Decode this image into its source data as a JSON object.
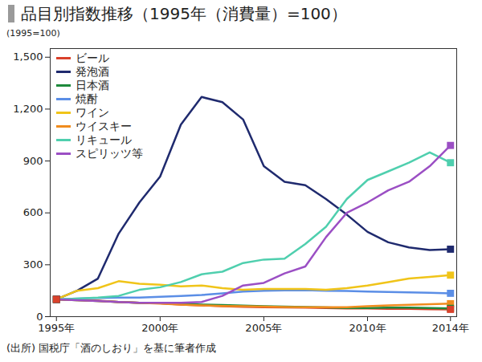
{
  "chart_data": {
    "type": "line",
    "title": "品目別指数推移（1995年（消費量）=100）",
    "y_label": "(1995=100)",
    "source": "(出所) 国税庁「酒のしおり」を基に筆者作成",
    "x": [
      1995,
      1996,
      1997,
      1998,
      1999,
      2000,
      2001,
      2002,
      2003,
      2004,
      2005,
      2006,
      2007,
      2008,
      2009,
      2010,
      2011,
      2012,
      2013,
      2014
    ],
    "series": [
      {
        "name": "ビール",
        "color": "#d9412b",
        "values": [
          100,
          97,
          93,
          85,
          80,
          78,
          70,
          65,
          60,
          57,
          55,
          53,
          52,
          50,
          48,
          47,
          45,
          45,
          43,
          42
        ]
      },
      {
        "name": "発泡酒",
        "color": "#1f2a6e",
        "values": [
          100,
          150,
          220,
          480,
          660,
          810,
          1110,
          1270,
          1240,
          1140,
          870,
          780,
          760,
          680,
          590,
          490,
          430,
          400,
          385,
          390
        ]
      },
      {
        "name": "日本酒",
        "color": "#1e8a3c",
        "values": [
          100,
          95,
          90,
          85,
          80,
          78,
          75,
          70,
          67,
          64,
          60,
          58,
          56,
          53,
          50,
          50,
          52,
          52,
          50,
          48
        ]
      },
      {
        "name": "焼酎",
        "color": "#5b8ee6",
        "values": [
          100,
          105,
          108,
          110,
          110,
          115,
          120,
          125,
          135,
          145,
          150,
          152,
          153,
          150,
          148,
          145,
          143,
          140,
          138,
          135
        ]
      },
      {
        "name": "ワイン",
        "color": "#f0c419",
        "values": [
          100,
          150,
          165,
          205,
          190,
          185,
          175,
          180,
          165,
          155,
          160,
          160,
          160,
          155,
          165,
          180,
          200,
          220,
          230,
          240
        ]
      },
      {
        "name": "ウイスキー",
        "color": "#f08c1e",
        "values": [
          100,
          95,
          90,
          85,
          80,
          75,
          70,
          65,
          62,
          60,
          58,
          56,
          54,
          55,
          55,
          60,
          65,
          68,
          72,
          75
        ]
      },
      {
        "name": "リキュール",
        "color": "#4fcfae",
        "values": [
          100,
          105,
          110,
          120,
          155,
          170,
          200,
          245,
          260,
          310,
          330,
          335,
          420,
          520,
          680,
          790,
          840,
          890,
          950,
          890
        ]
      },
      {
        "name": "スピリッツ等",
        "color": "#9b4fc4",
        "values": [
          100,
          95,
          90,
          85,
          80,
          80,
          80,
          85,
          120,
          180,
          195,
          250,
          290,
          460,
          600,
          660,
          730,
          780,
          870,
          990
        ]
      }
    ],
    "xlim": [
      1994.7,
      2014.3
    ],
    "xticks": [
      {
        "value": 1995,
        "label": "1995年"
      },
      {
        "value": 2000,
        "label": "2000年"
      },
      {
        "value": 2005,
        "label": "2005年"
      },
      {
        "value": 2010,
        "label": "2010年"
      },
      {
        "value": 2014,
        "label": "2014年"
      }
    ],
    "ylim": [
      0,
      1550
    ],
    "yticks": [
      0,
      300,
      600,
      900,
      {
        "value": 1200,
        "label": "1,200"
      },
      {
        "value": 1500,
        "label": "1,500"
      }
    ],
    "grid": false,
    "legend": "top-left",
    "marker": "square"
  }
}
